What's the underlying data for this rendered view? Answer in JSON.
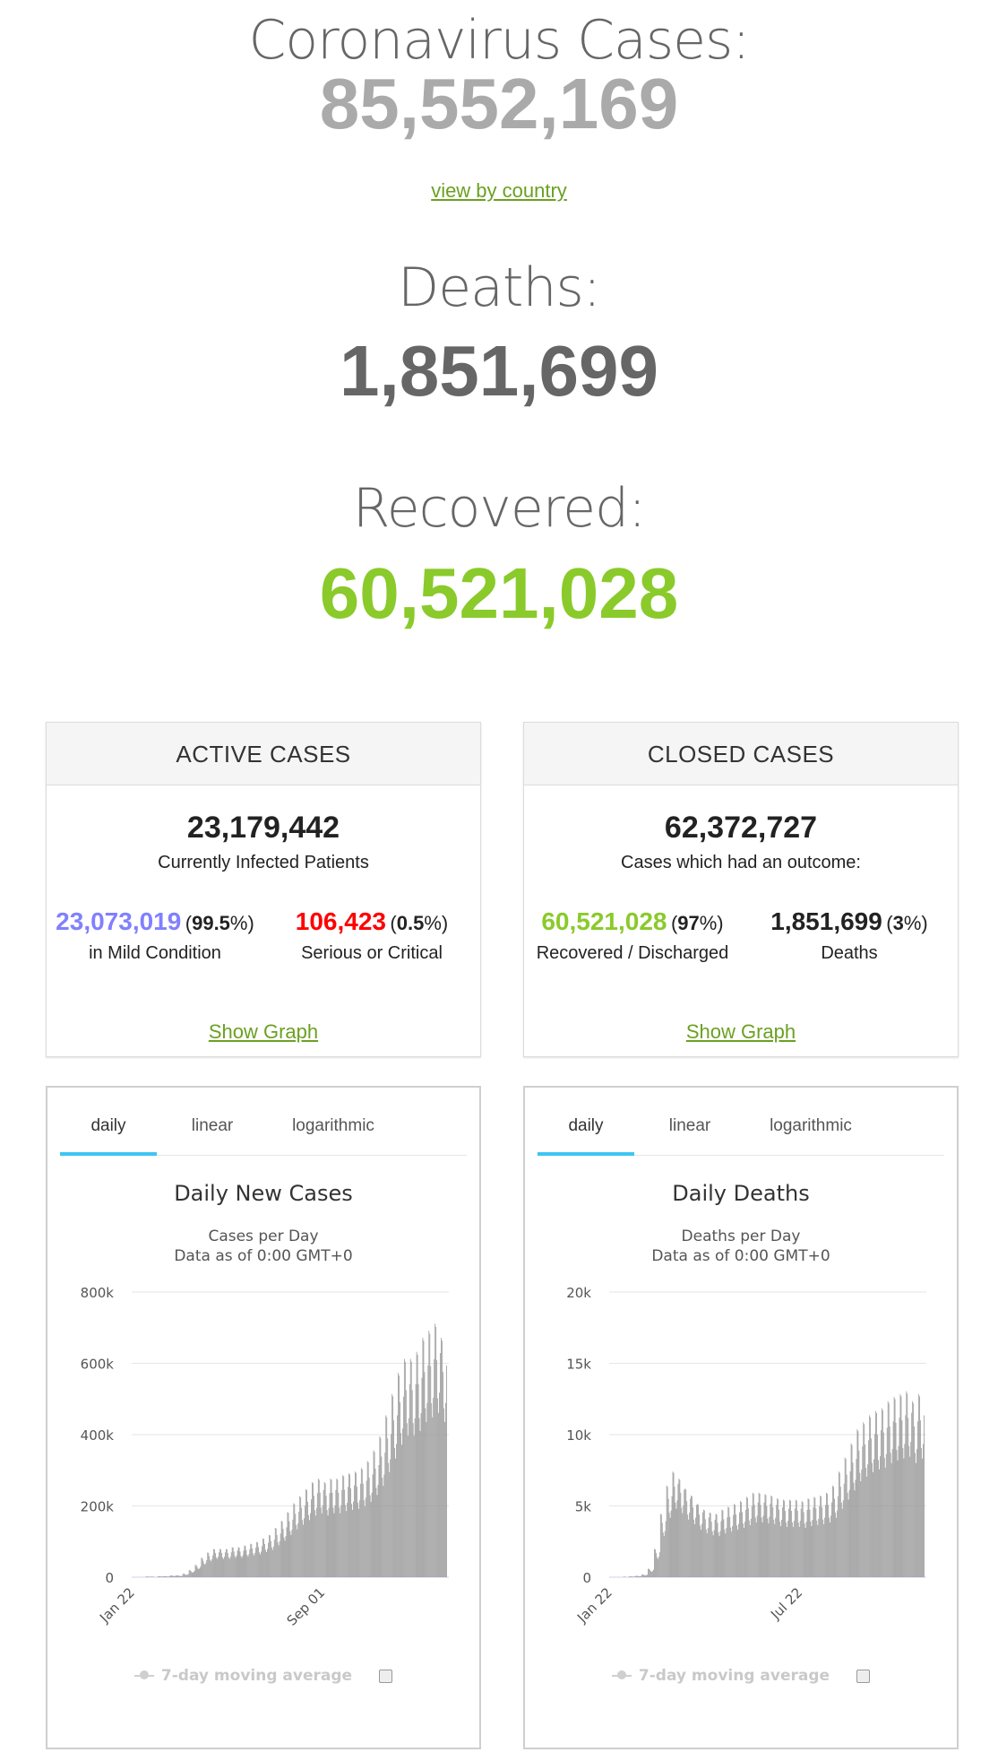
{
  "stats": {
    "cases_label": "Coronavirus Cases:",
    "cases_value": "85,552,169",
    "view_link": "view by country",
    "deaths_label": "Deaths:",
    "deaths_value": "1,851,699",
    "recovered_label": "Recovered:",
    "recovered_value": "60,521,028",
    "colors": {
      "cases": "#aaaaaa",
      "deaths": "#666666",
      "recovered": "#8aca2b"
    }
  },
  "active": {
    "header": "ACTIVE CASES",
    "total": "23,179,442",
    "subtitle": "Currently Infected Patients",
    "mild_value": "23,073,019",
    "mild_pct": "99.5",
    "mild_label": "in Mild Condition",
    "serious_value": "106,423",
    "serious_pct": "0.5",
    "serious_label": "Serious or Critical",
    "show_graph": "Show Graph",
    "colors": {
      "mild": "#8080ff",
      "serious": "#ff0000"
    }
  },
  "closed": {
    "header": "CLOSED CASES",
    "total": "62,372,727",
    "subtitle": "Cases which had an outcome:",
    "recovered_value": "60,521,028",
    "recovered_pct": "97",
    "recovered_label": "Recovered / Discharged",
    "deaths_value": "1,851,699",
    "deaths_pct": "3",
    "deaths_label": "Deaths",
    "show_graph": "Show Graph",
    "colors": {
      "recovered": "#8aca2b",
      "deaths": "#222222"
    }
  },
  "chart_tabs": [
    "daily",
    "linear",
    "logarithmic"
  ],
  "chart_data": [
    {
      "type": "bar",
      "title": "Daily New Cases",
      "subtitle_line1": "Cases per Day",
      "subtitle_line2": "Data as of 0:00 GMT+0",
      "ylim": [
        0,
        800000
      ],
      "yticks": [
        "0",
        "200k",
        "400k",
        "600k",
        "800k"
      ],
      "xticks": [
        "Jan 22",
        "Sep 01"
      ],
      "x_range": [
        "Jan 22",
        "Jan 04"
      ],
      "bar_color": "#999999",
      "legend": "7-day moving average",
      "approx_weekly_values": [
        0,
        0,
        2000,
        1500,
        3000,
        3000,
        5000,
        5000,
        10000,
        20000,
        35000,
        55000,
        70000,
        80000,
        80000,
        80000,
        85000,
        85000,
        90000,
        95000,
        100000,
        110000,
        120000,
        140000,
        160000,
        185000,
        210000,
        230000,
        250000,
        270000,
        280000,
        270000,
        280000,
        280000,
        290000,
        295000,
        300000,
        310000,
        330000,
        360000,
        400000,
        460000,
        520000,
        580000,
        620000,
        620000,
        640000,
        680000,
        700000,
        720000,
        680000
      ]
    },
    {
      "type": "bar",
      "title": "Daily Deaths",
      "subtitle_line1": "Deaths per Day",
      "subtitle_line2": "Data as of 0:00 GMT+0",
      "ylim": [
        0,
        20000
      ],
      "yticks": [
        "0",
        "5k",
        "10k",
        "15k",
        "20k"
      ],
      "xticks": [
        "Jan 22",
        "Jul 22"
      ],
      "x_range": [
        "Jan 22",
        "Jan 04"
      ],
      "bar_color": "#999999",
      "legend": "7-day moving average",
      "approx_weekly_values": [
        0,
        20,
        40,
        60,
        100,
        200,
        600,
        2000,
        4500,
        6500,
        7500,
        7000,
        6300,
        5800,
        5200,
        4800,
        4600,
        4500,
        4800,
        5000,
        5200,
        5400,
        5700,
        6000,
        6000,
        5900,
        5800,
        5600,
        5500,
        5500,
        5500,
        5400,
        5600,
        5700,
        5800,
        6000,
        6500,
        7500,
        8500,
        9500,
        10500,
        11000,
        11500,
        11800,
        12000,
        12500,
        12800,
        13000,
        13200,
        12500,
        13000
      ]
    }
  ]
}
